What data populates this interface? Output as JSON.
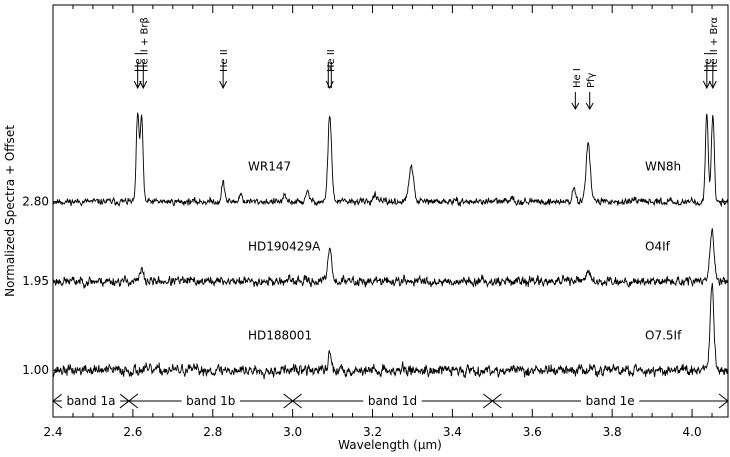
{
  "chart_data": {
    "type": "line",
    "title": "",
    "xlabel": "Wavelength (μm)",
    "ylabel": "Normalized Spectra + Offset",
    "xlim": [
      2.4,
      4.09
    ],
    "ylim": [
      0.5,
      4.9
    ],
    "x_ticks": [
      "2.4",
      "2.6",
      "2.8",
      "3.0",
      "3.2",
      "3.4",
      "3.6",
      "3.8",
      "4.0"
    ],
    "y_ticks": [
      "1.00",
      "1.95",
      "2.80"
    ],
    "series": [
      {
        "name": "WR147",
        "right_label": "WN8h",
        "offset": 2.8,
        "noise": 0.035,
        "seed": 11,
        "lines": [
          {
            "x": 2.612,
            "h": 0.93,
            "w": 0.0035
          },
          {
            "x": 2.622,
            "h": 0.9,
            "w": 0.0035
          },
          {
            "x": 2.826,
            "h": 0.2,
            "w": 0.004
          },
          {
            "x": 2.87,
            "h": 0.08,
            "w": 0.004
          },
          {
            "x": 2.98,
            "h": 0.05,
            "w": 0.004
          },
          {
            "x": 3.038,
            "h": 0.1,
            "w": 0.004
          },
          {
            "x": 3.093,
            "h": 0.93,
            "w": 0.0045
          },
          {
            "x": 3.205,
            "h": 0.08,
            "w": 0.004
          },
          {
            "x": 3.297,
            "h": 0.36,
            "w": 0.006
          },
          {
            "x": 3.548,
            "h": 0.06,
            "w": 0.004
          },
          {
            "x": 3.704,
            "h": 0.14,
            "w": 0.004
          },
          {
            "x": 3.74,
            "h": 0.62,
            "w": 0.0055
          },
          {
            "x": 4.037,
            "h": 0.93,
            "w": 0.0035
          },
          {
            "x": 4.052,
            "h": 0.93,
            "w": 0.0035
          }
        ]
      },
      {
        "name": "HD190429A",
        "right_label": "O4If",
        "offset": 1.95,
        "noise": 0.05,
        "seed": 23,
        "lines": [
          {
            "x": 2.622,
            "h": 0.12,
            "w": 0.004
          },
          {
            "x": 3.093,
            "h": 0.38,
            "w": 0.0045
          },
          {
            "x": 3.74,
            "h": 0.1,
            "w": 0.005
          },
          {
            "x": 4.05,
            "h": 0.57,
            "w": 0.005
          }
        ]
      },
      {
        "name": "HD188001",
        "right_label": "O7.5If",
        "offset": 1.0,
        "noise": 0.06,
        "seed": 37,
        "lines": [
          {
            "x": 3.093,
            "h": 0.22,
            "w": 0.003
          },
          {
            "x": 4.05,
            "h": 0.88,
            "w": 0.0045
          }
        ]
      }
    ],
    "line_ids": [
      {
        "x": 2.612,
        "label": "He I",
        "arrow": "down"
      },
      {
        "x": 2.626,
        "label": "He II + Brβ",
        "arrow": "down"
      },
      {
        "x": 2.826,
        "label": "He II",
        "arrow": "down"
      },
      {
        "x": 3.093,
        "label": "He II",
        "arrow": "double"
      },
      {
        "x": 3.704,
        "label": "He I",
        "arrow": "left"
      },
      {
        "x": 3.74,
        "label": "Pfγ",
        "arrow": "left"
      },
      {
        "x": 4.037,
        "label": "He I",
        "arrow": "down"
      },
      {
        "x": 4.052,
        "label": "He II + Brα",
        "arrow": "down"
      }
    ],
    "bands": [
      {
        "label": "band 1a",
        "start": 2.4,
        "end": 2.59
      },
      {
        "label": "band 1b",
        "start": 2.59,
        "end": 3.0
      },
      {
        "label": "band 1d",
        "start": 3.0,
        "end": 3.5
      },
      {
        "label": "band 1e",
        "start": 3.5,
        "end": 4.09
      }
    ]
  }
}
